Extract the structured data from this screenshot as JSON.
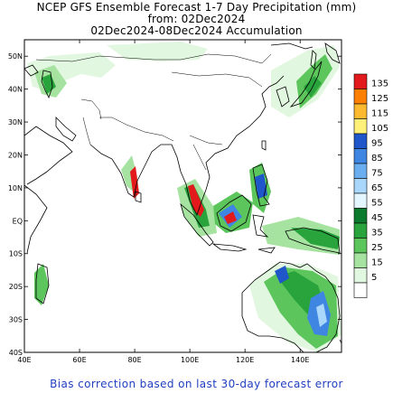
{
  "header": {
    "line1": "NCEP GFS Ensemble Forecast 1-7 Day Precipitation (mm)",
    "line2": "from: 02Dec2024",
    "line3": "02Dec2024-08Dec2024 Accumulation"
  },
  "footer": {
    "note": "Bias correction based on last 30-day forecast error"
  },
  "map": {
    "lon_range": [
      40,
      155
    ],
    "lat_range": [
      -40,
      55
    ],
    "lon_ticks": [
      {
        "value": 40,
        "label": "40E"
      },
      {
        "value": 60,
        "label": "60E"
      },
      {
        "value": 80,
        "label": "80E"
      },
      {
        "value": 100,
        "label": "100E"
      },
      {
        "value": 120,
        "label": "120E"
      },
      {
        "value": 140,
        "label": "140E"
      }
    ],
    "lat_ticks": [
      {
        "value": 50,
        "label": "50N"
      },
      {
        "value": 40,
        "label": "40N"
      },
      {
        "value": 30,
        "label": "30N"
      },
      {
        "value": 20,
        "label": "20N"
      },
      {
        "value": 10,
        "label": "10N"
      },
      {
        "value": 0,
        "label": "EQ"
      },
      {
        "value": -10,
        "label": "10S"
      },
      {
        "value": -20,
        "label": "20S"
      },
      {
        "value": -30,
        "label": "30S"
      },
      {
        "value": -40,
        "label": "40S"
      }
    ]
  },
  "legend": {
    "levels": [
      {
        "label": "135",
        "color": "#e31a1c"
      },
      {
        "label": "125",
        "color": "#ff7f00"
      },
      {
        "label": "115",
        "color": "#fdb930"
      },
      {
        "label": "105",
        "color": "#fff07a"
      },
      {
        "label": "95",
        "color": "#1f56c9"
      },
      {
        "label": "85",
        "color": "#3f86e3"
      },
      {
        "label": "75",
        "color": "#6aaef0"
      },
      {
        "label": "65",
        "color": "#a9d6fb"
      },
      {
        "label": "55",
        "color": "#e3f5ff"
      },
      {
        "label": "45",
        "color": "#0b7a2d"
      },
      {
        "label": "35",
        "color": "#29a33c"
      },
      {
        "label": "25",
        "color": "#5cc65c"
      },
      {
        "label": "15",
        "color": "#a6e3a1"
      },
      {
        "label": "5",
        "color": "#e2f7df"
      },
      {
        "label": "",
        "color": "#ffffff"
      }
    ]
  }
}
